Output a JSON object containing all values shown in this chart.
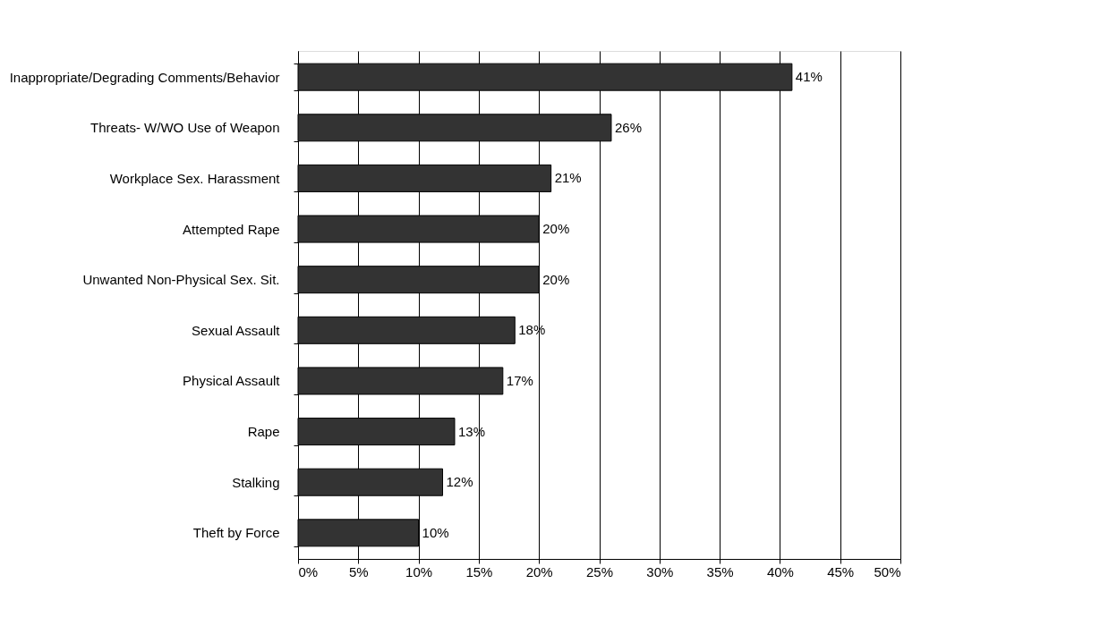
{
  "chart_data": {
    "type": "bar",
    "orientation": "horizontal",
    "categories": [
      "Inappropriate/Degrading Comments/Behavior",
      "Threats- W/WO Use of Weapon",
      "Workplace Sex. Harassment",
      "Attempted Rape",
      "Unwanted Non-Physical Sex. Sit.",
      "Sexual Assault",
      "Physical Assault",
      "Rape",
      "Stalking",
      "Theft by Force"
    ],
    "values": [
      41,
      26,
      21,
      20,
      20,
      18,
      17,
      13,
      12,
      10
    ],
    "value_labels": [
      "41%",
      "26%",
      "21%",
      "20%",
      "20%",
      "18%",
      "17%",
      "13%",
      "12%",
      "10%"
    ],
    "color": "#333333",
    "xlim": [
      0,
      50
    ],
    "xticks": [
      {
        "value": 0,
        "label": "0%"
      },
      {
        "value": 5,
        "label": "5%"
      },
      {
        "value": 10,
        "label": "10%"
      },
      {
        "value": 15,
        "label": "15%"
      },
      {
        "value": 20,
        "label": "20%"
      },
      {
        "value": 25,
        "label": "25%"
      },
      {
        "value": 30,
        "label": "30%"
      },
      {
        "value": 35,
        "label": "35%"
      },
      {
        "value": 40,
        "label": "40%"
      },
      {
        "value": 45,
        "label": "45%"
      },
      {
        "value": 50,
        "label": "50%"
      }
    ],
    "grid": "x"
  }
}
